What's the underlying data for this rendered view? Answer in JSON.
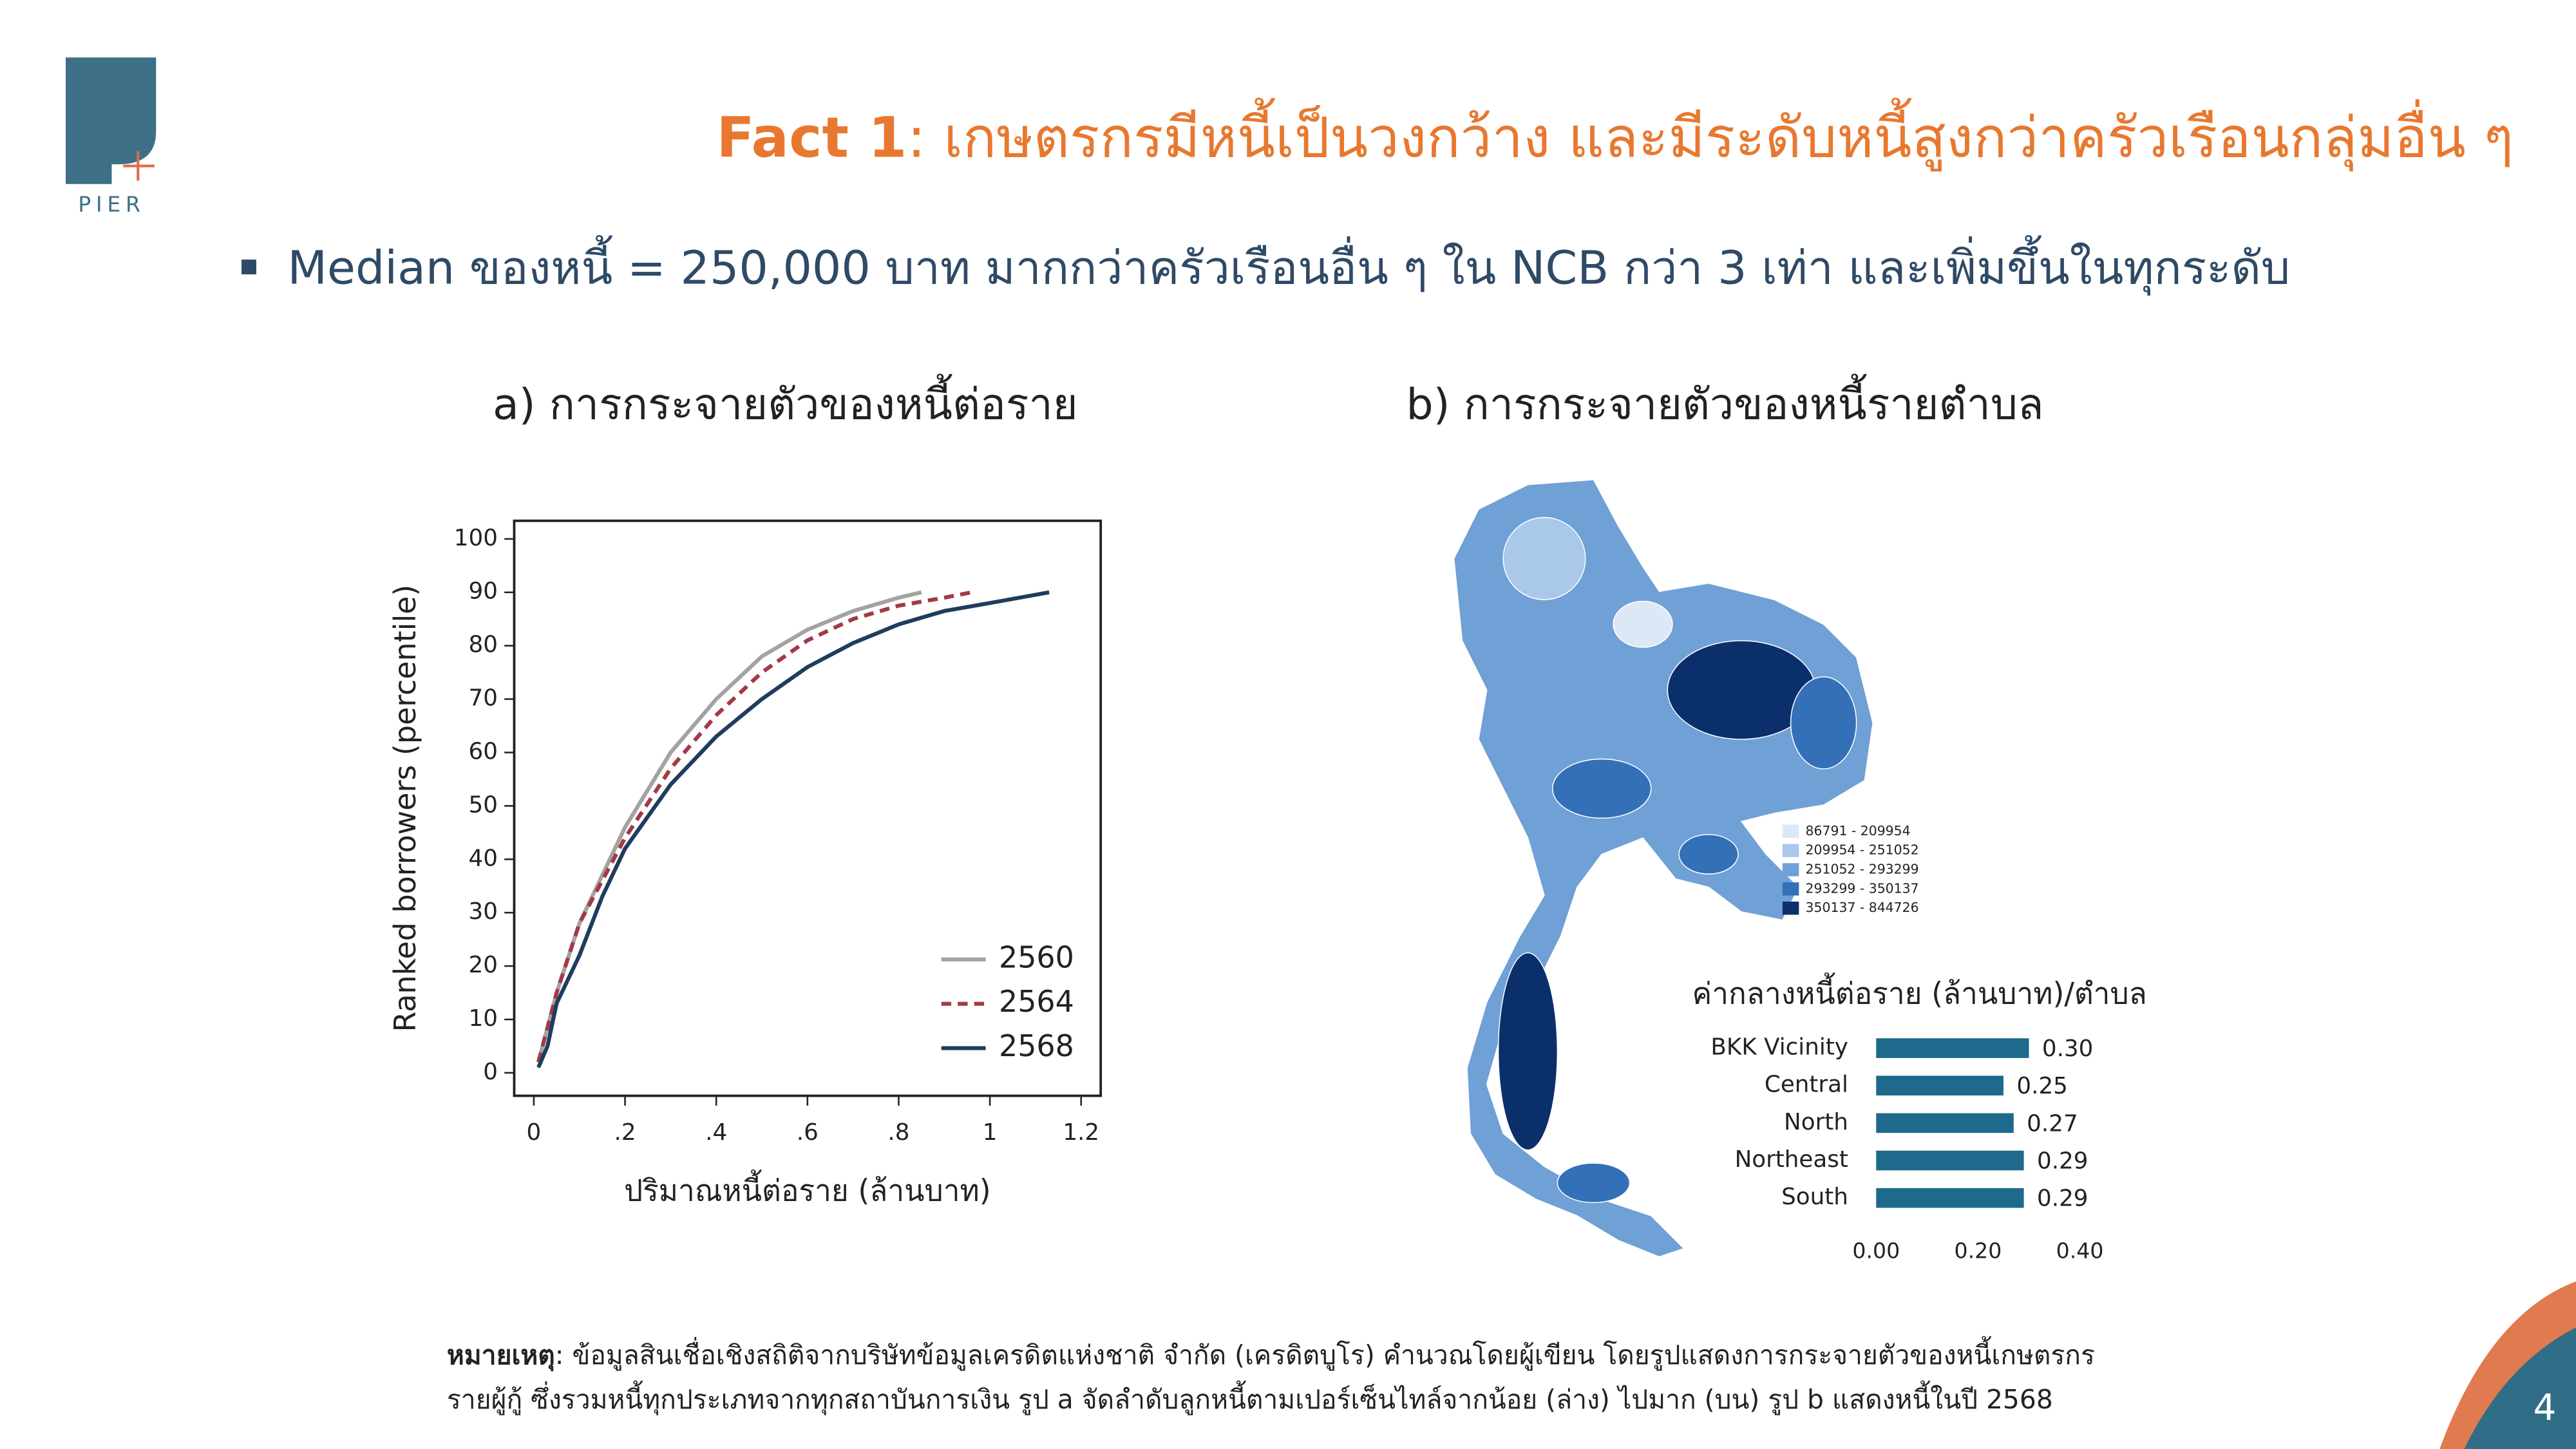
{
  "header": {
    "logo": "PIER",
    "title_prefix": "Fact 1",
    "title": ": เกษตรกรมีหนี้เป็นวงกว้าง และมีระดับหนี้สูงกว่าครัวเรือนกลุ่มอื่น ๆ"
  },
  "bullet": "Median ของหนี้ = 250,000 บาท มากกว่าครัวเรือนอื่น ๆ ใน NCB กว่า 3 เท่า และเพิ่มขึ้นในทุกระดับ",
  "chart_data": [
    {
      "type": "line",
      "title": "a) การกระจายตัวของหนี้ต่อราย",
      "x_label": "ปริมาณหนี้ต่อราย (ล้านบาท)",
      "y_label": "Ranked borrowers (percentile)",
      "xlim": [
        -0.043,
        1.243
      ],
      "ylim": [
        -4.3,
        103.4
      ],
      "xticks": [
        0,
        {
          "value": 0.2,
          "label": ".2"
        },
        {
          "value": 0.4,
          "label": ".4"
        },
        {
          "value": 0.6,
          "label": ".6"
        },
        {
          "value": 0.8,
          "label": ".8"
        },
        1,
        1.2
      ],
      "yticks": [
        0,
        10,
        20,
        30,
        40,
        50,
        60,
        70,
        80,
        90,
        100
      ],
      "legend": "lower right",
      "series": [
        {
          "name": "2560",
          "color": "#a3a3a3",
          "dashed": false,
          "x": [
            0.01,
            0.05,
            0.1,
            0.2,
            0.3,
            0.4,
            0.5,
            0.6,
            0.7,
            0.8,
            0.85
          ],
          "values": [
            2,
            15,
            28,
            46,
            60,
            70,
            78,
            83,
            86.5,
            89,
            90
          ]
        },
        {
          "name": "2564",
          "color": "#a33a45",
          "dashed": true,
          "x": [
            0.01,
            0.05,
            0.1,
            0.2,
            0.3,
            0.4,
            0.5,
            0.6,
            0.7,
            0.8,
            0.9,
            0.96
          ],
          "values": [
            2,
            15,
            28,
            44,
            57,
            67,
            75,
            81,
            85,
            87.5,
            89,
            90
          ]
        },
        {
          "name": "2568",
          "color": "#1f3d5e",
          "dashed": false,
          "x": [
            0.01,
            0.03,
            0.05,
            0.1,
            0.15,
            0.2,
            0.3,
            0.4,
            0.5,
            0.6,
            0.7,
            0.8,
            0.9,
            1.0,
            1.13
          ],
          "values": [
            1,
            5,
            13,
            22,
            33,
            42,
            54,
            63,
            70,
            76,
            80.5,
            84,
            86.5,
            88,
            90
          ]
        }
      ]
    },
    {
      "type": "map",
      "title": "b) การกระจายตัวของหนี้รายตำบล",
      "legend": [
        {
          "label": "86791 - 209954",
          "color": "#dce8f5"
        },
        {
          "label": "209954 - 251052",
          "color": "#a9c8ea"
        },
        {
          "label": "251052 - 293299",
          "color": "#6fa0d6"
        },
        {
          "label": "293299 - 350137",
          "color": "#3470b8"
        },
        {
          "label": "350137 - 844726",
          "color": "#0b2f6b"
        }
      ]
    },
    {
      "type": "bar",
      "orientation": "horizontal",
      "title": "ค่ากลางหนี้ต่อราย (ล้านบาท)/ตำบล",
      "categories": [
        "BKK Vicinity",
        "Central",
        "North",
        "Northeast",
        "South"
      ],
      "values": [
        0.3,
        0.25,
        0.27,
        0.29,
        0.29
      ],
      "value_labels": [
        "0.30",
        "0.25",
        "0.27",
        "0.29",
        "0.29"
      ],
      "color": "#1d6a8c",
      "xlim": [
        0,
        0.4
      ],
      "xticks": [
        {
          "value": 0,
          "label": "0.00"
        },
        {
          "value": 0.2,
          "label": "0.20"
        },
        {
          "value": 0.4,
          "label": "0.40"
        }
      ]
    }
  ],
  "note": {
    "label": "หมายเหตุ",
    "lines": [
      ": ข้อมูลสินเชื่อเชิงสถิติจากบริษัทข้อมูลเครดิตแห่งชาติ จำกัด (เครดิตบูโร) คำนวณโดยผู้เขียน โดยรูปแสดงการกระจายตัวของหนี้เกษตรกร",
      "รายผู้กู้ ซึ่งรวมหนี้ทุกประเภทจากทุกสถาบันการเงิน รูป a จัดลำดับลูกหนี้ตามเปอร์เซ็นไทล์จากน้อย (ล่าง) ไปมาก (บน) รูป b แสดงหนี้ในปี 2568"
    ]
  },
  "page_number": 4
}
